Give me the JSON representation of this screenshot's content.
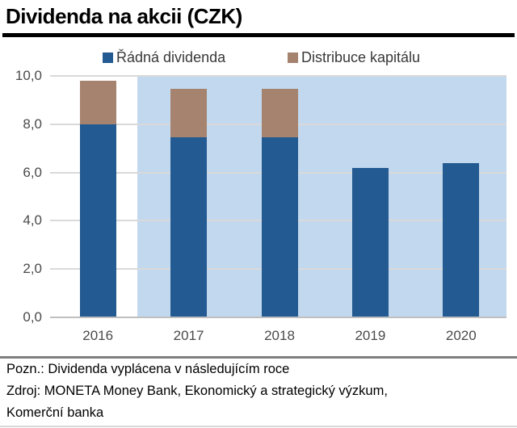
{
  "header": {
    "title": "Dividenda na akcii (CZK)"
  },
  "chart_data": {
    "type": "bar",
    "stacked": true,
    "categories": [
      "2016",
      "2017",
      "2018",
      "2019",
      "2020"
    ],
    "series": [
      {
        "name": "Řádná dividenda",
        "color": "#235a91",
        "values": [
          8.0,
          7.45,
          7.45,
          6.2,
          6.4
        ]
      },
      {
        "name": "Distribuce kapitálu",
        "color": "#a6836f",
        "values": [
          1.8,
          2.0,
          2.0,
          0,
          0
        ]
      }
    ],
    "totals": [
      9.8,
      9.45,
      9.45,
      6.2,
      6.4
    ],
    "ylim": [
      0,
      10
    ],
    "yticks": [
      {
        "label": "0,0",
        "value": 0
      },
      {
        "label": "2,0",
        "value": 2
      },
      {
        "label": "4,0",
        "value": 4
      },
      {
        "label": "6,0",
        "value": 6
      },
      {
        "label": "8,0",
        "value": 8
      },
      {
        "label": "10,0",
        "value": 10
      }
    ],
    "grid": true,
    "legend_position": "top",
    "forecast_shading": {
      "start_index": 1,
      "color": "#c2d8ef"
    }
  },
  "footer": {
    "note": "Pozn.: Dividenda vyplácena v následujícím roce",
    "source_line1": "Zdroj: MONETA Money Bank, Ekonomický a strategický výzkum,",
    "source_line2": "Komerční banka"
  }
}
